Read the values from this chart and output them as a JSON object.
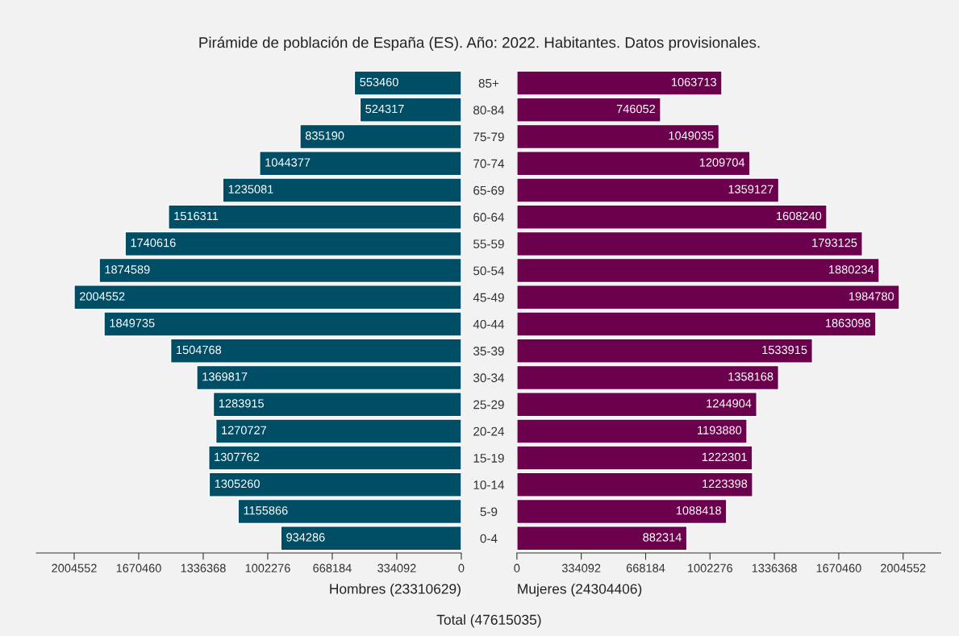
{
  "chart_data": [
    {
      "type": "bar",
      "orientation": "horizontal",
      "title": "Pirámide de población de España (ES). Año: 2022. Habitantes. Datos provisionales.",
      "xlabel": "Hombres (23310629)",
      "categories": [
        "85+",
        "80-84",
        "75-79",
        "70-74",
        "65-69",
        "60-64",
        "55-59",
        "50-54",
        "45-49",
        "40-44",
        "35-39",
        "30-34",
        "25-29",
        "20-24",
        "15-19",
        "10-14",
        "5-9",
        "0-4"
      ],
      "series": [
        {
          "color": "#004d66",
          "values": [
            553460,
            524317,
            835190,
            1044377,
            1235081,
            1516311,
            1740616,
            1874589,
            2004552,
            1849735,
            1504768,
            1369817,
            1283915,
            1270727,
            1307762,
            1305260,
            1155866,
            934286
          ]
        }
      ],
      "xlim": [
        2200000,
        0
      ],
      "xticks": [
        0,
        334092,
        668184,
        1002276,
        1336368,
        1670460,
        2004552
      ],
      "data_labels": true,
      "grid": false,
      "legend": false
    },
    {
      "type": "bar",
      "orientation": "horizontal",
      "xlabel": "Mujeres (24304406)",
      "categories": [
        null,
        null,
        null,
        null,
        null,
        null,
        null,
        null,
        null,
        null,
        null,
        null,
        null,
        null,
        null,
        null,
        null,
        null
      ],
      "series": [
        {
          "color": "#6b004d",
          "values": [
            1063713,
            746052,
            1049035,
            1209704,
            1359127,
            1608240,
            1793125,
            1880234,
            1984780,
            1863098,
            1533915,
            1358168,
            1244904,
            1193880,
            1222301,
            1223398,
            1088418,
            882314
          ]
        }
      ],
      "xlim": [
        0,
        2200000
      ],
      "xticks": [
        0,
        334092,
        668184,
        1002276,
        1336368,
        1670460,
        2004552
      ],
      "data_labels": true,
      "grid": false,
      "legend": false,
      "tick_labels": "x",
      "annotations": [
        "Total (47615035)"
      ]
    }
  ]
}
